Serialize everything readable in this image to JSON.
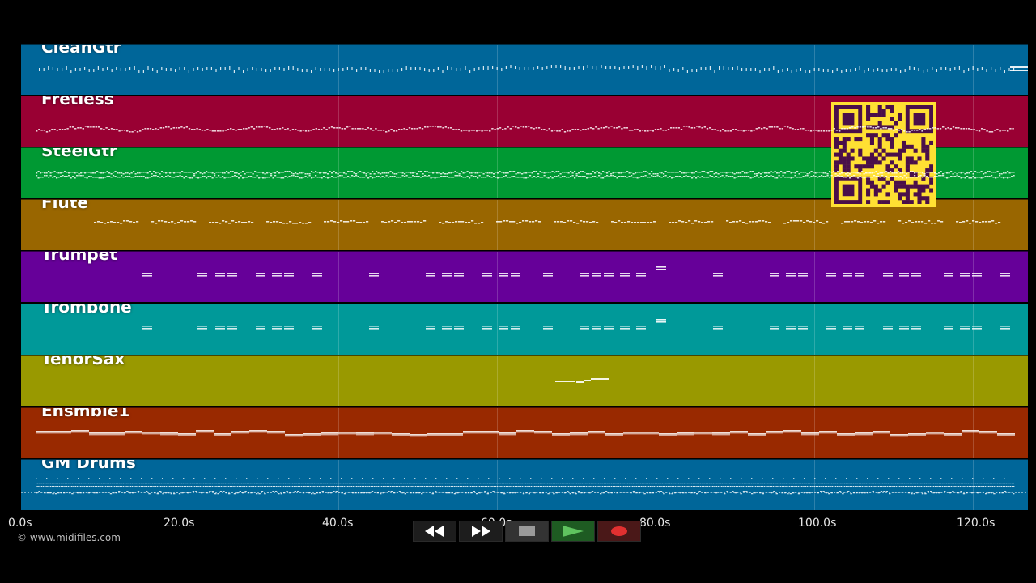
{
  "tracks": [
    {
      "name": "CleanGtr",
      "color": "#006699",
      "style": "ticks"
    },
    {
      "name": "Fretless",
      "color": "#990033",
      "style": "wave"
    },
    {
      "name": "SteelGtr",
      "color": "#009933",
      "style": "dense"
    },
    {
      "name": "Flute",
      "color": "#996600",
      "style": "phrases"
    },
    {
      "name": "Trumpet",
      "color": "#660099",
      "style": "brass"
    },
    {
      "name": "Trombone",
      "color": "#009999",
      "style": "brass"
    },
    {
      "name": "TenorSax",
      "color": "#999900",
      "style": "solo"
    },
    {
      "name": "Ensmble1",
      "color": "#992900",
      "style": "pad"
    },
    {
      "name": "GM Drums",
      "color": "#006699",
      "style": "drums"
    }
  ],
  "timeline": {
    "ticks": [
      "0.0s",
      "20.0s",
      "40.0s",
      "60.0s",
      "80.0s",
      "100.0s",
      "120.0s"
    ],
    "max_seconds": 127
  },
  "copyright": "© www.midifiles.com",
  "transport": {
    "rewind": "rewind-icon",
    "fast_forward": "fast-forward-icon",
    "stop": "stop-icon",
    "play": "play-icon",
    "record": "record-icon"
  },
  "qr": {
    "color": "#ffe033",
    "ink": "#4a0f4a"
  }
}
